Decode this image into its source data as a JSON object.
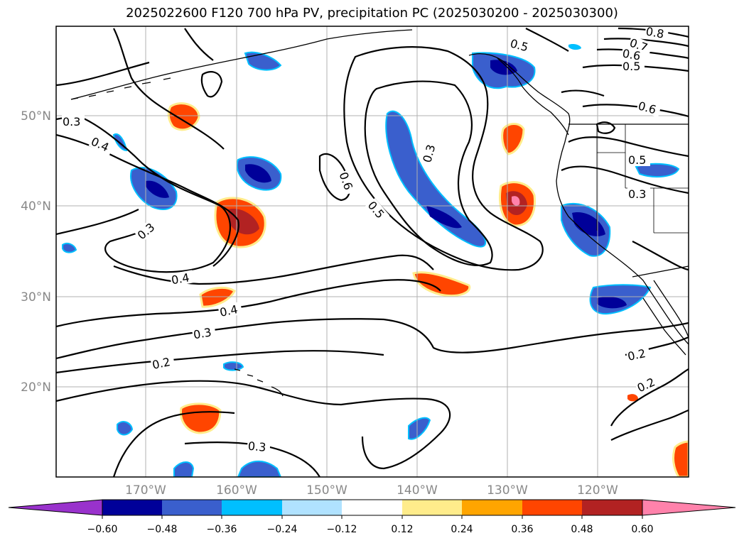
{
  "title": "2025022600 F120 700 hPa PV, precipitation PC (2025030200 - 2025030300)",
  "map": {
    "lat_labels": [
      "50°N",
      "40°N",
      "30°N",
      "20°N"
    ],
    "lon_labels": [
      "170°W",
      "160°W",
      "150°W",
      "140°W",
      "130°W",
      "120°W"
    ],
    "contour_labels": [
      "0.3",
      "0.4",
      "0.3",
      "0.4",
      "0.4",
      "0.3",
      "0.2",
      "0.3",
      "0.6",
      "0.5",
      "0.3",
      "0.5",
      "0.8",
      "0.7",
      "0.6",
      "0.5",
      "0.6",
      "0.5",
      "0.3",
      "0.2",
      "0.2"
    ],
    "colors": {
      "land_outline": "#000000",
      "grid": "#b0b0b0",
      "contour": "#000000"
    }
  },
  "colorbar": {
    "ticks": [
      "−0.60",
      "−0.48",
      "−0.36",
      "−0.24",
      "−0.12",
      "0.12",
      "0.24",
      "0.36",
      "0.48",
      "0.60"
    ],
    "colors": [
      "#9932cc",
      "#000099",
      "#3a5fcd",
      "#00bfff",
      "#b0e2ff",
      "#ffffff",
      "#ffec8b",
      "#ffa500",
      "#ff4500",
      "#b22222",
      "#ff82ab"
    ]
  }
}
